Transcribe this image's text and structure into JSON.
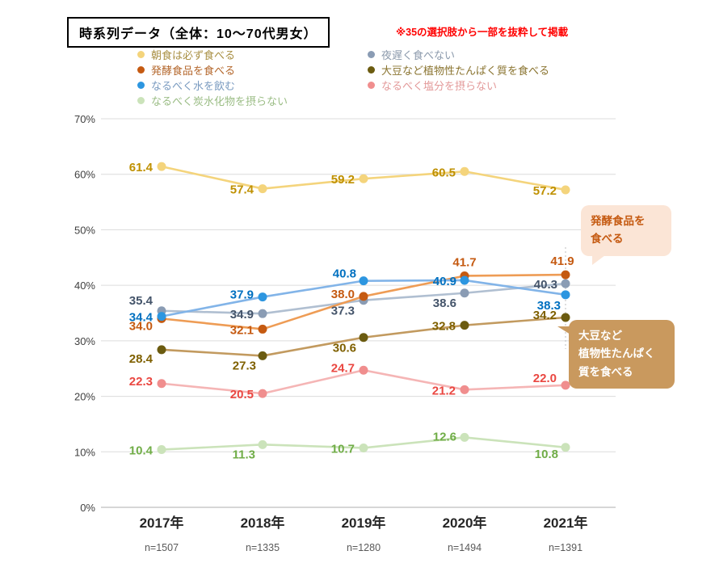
{
  "header": {
    "title": "時系列データ（全体：10～70代男女）",
    "note": "※35の選択肢から一部を抜粋して掲載",
    "note_color": "#FF0000"
  },
  "chart_data": {
    "type": "line",
    "title": "時系列データ（全体：10～70代男女）",
    "x_categories": [
      "2017年",
      "2018年",
      "2019年",
      "2020年",
      "2021年"
    ],
    "x_sublabels": [
      "n=1507",
      "n=1335",
      "n=1280",
      "n=1494",
      "n=1391"
    ],
    "ylim": [
      0,
      70
    ],
    "y_ticks": [
      "0%",
      "10%",
      "20%",
      "30%",
      "40%",
      "50%",
      "60%",
      "70%"
    ],
    "grid": "horizontal",
    "legend_position": "top",
    "series": [
      {
        "name": "朝食は必ず食べる",
        "values": [
          61.4,
          57.4,
          59.2,
          60.5,
          57.2
        ],
        "line_color": "#F4D47C",
        "marker_color": "#F4D47C",
        "label_color": "#BF9000",
        "legend_color": "#A99044"
      },
      {
        "name": "発酵食品を食べる",
        "values": [
          34.0,
          32.1,
          38.0,
          41.7,
          41.9
        ],
        "line_color": "#EE9C55",
        "marker_color": "#C55A11",
        "label_color": "#C55A11",
        "legend_color": "#B4672C"
      },
      {
        "name": "なるべく水を飲む",
        "values": [
          34.4,
          37.9,
          40.8,
          40.9,
          38.3
        ],
        "line_color": "#82B4E8",
        "marker_color": "#2D96E0",
        "label_color": "#0070C0",
        "legend_color": "#7A9BC0"
      },
      {
        "name": "なるべく炭水化物を摂らない",
        "values": [
          10.4,
          11.3,
          10.7,
          12.6,
          10.8
        ],
        "line_color": "#CBE3BA",
        "marker_color": "#CBE3BA",
        "label_color": "#70AD47",
        "legend_color": "#9BBD85"
      },
      {
        "name": "夜遅く食べない",
        "values": [
          35.4,
          34.9,
          37.3,
          38.6,
          40.3
        ],
        "line_color": "#B0BFD1",
        "marker_color": "#8A9CB4",
        "label_color": "#44546A",
        "legend_color": "#8C9AAC"
      },
      {
        "name": "大豆など植物性たんぱく質を食べる",
        "values": [
          28.4,
          27.3,
          30.6,
          32.8,
          34.2
        ],
        "line_color": "#C29A5F",
        "marker_color": "#6B5B10",
        "label_color": "#7F6000",
        "legend_color": "#8A7430"
      },
      {
        "name": "なるべく塩分を摂らない",
        "values": [
          22.3,
          20.5,
          24.7,
          21.2,
          22.0
        ],
        "line_color": "#F5B5B5",
        "marker_color": "#F08E8E",
        "label_color": "#EA4741",
        "legend_color": "#E39A9A"
      }
    ],
    "annotations": [
      {
        "id": "fermented",
        "lines": [
          "発酵食品を",
          "食べる"
        ],
        "bg": "#FBE5D6",
        "text_color": "#C55A11"
      },
      {
        "id": "soy",
        "lines": [
          "大豆など",
          "植物性たんぱく",
          "質を食べる"
        ],
        "bg": "#C9995E",
        "text_color": "#FFFFFF"
      }
    ]
  }
}
